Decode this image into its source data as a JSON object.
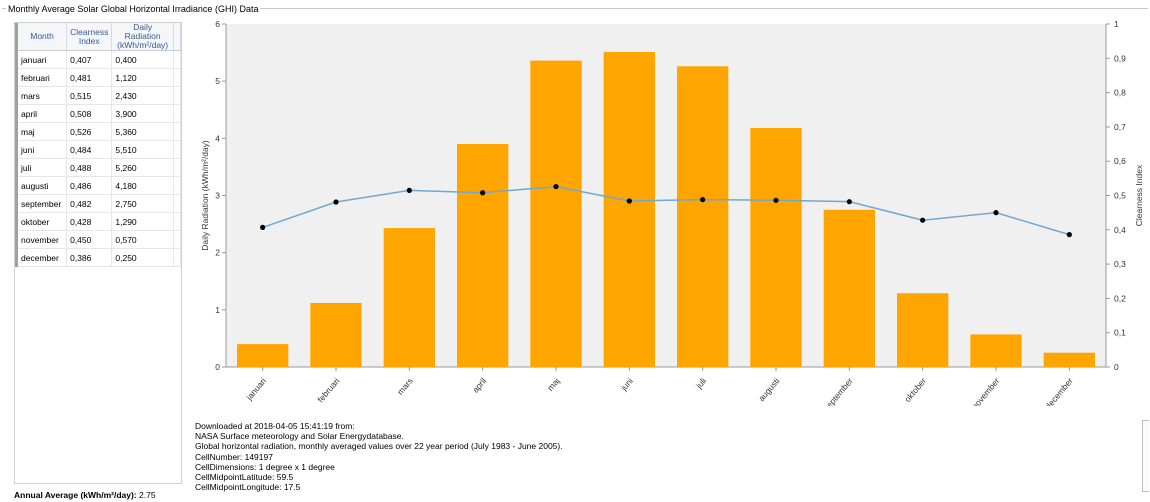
{
  "window": {
    "group_title": "Monthly Average Solar Global Horizontal Irradiance (GHI) Data"
  },
  "table": {
    "headers": [
      "Month",
      "Clearness Index",
      "Daily Radiation (kWh/m²/day)"
    ],
    "header_lines": [
      [
        "Month"
      ],
      [
        "Clearness",
        "Index"
      ],
      [
        "Daily Radiation",
        "(kWh/m²/day)"
      ]
    ],
    "rows": [
      [
        "januari",
        "0,407",
        "0,400"
      ],
      [
        "februari",
        "0,481",
        "1,120"
      ],
      [
        "mars",
        "0,515",
        "2,430"
      ],
      [
        "april",
        "0,508",
        "3,900"
      ],
      [
        "maj",
        "0,526",
        "5,360"
      ],
      [
        "juni",
        "0,484",
        "5,510"
      ],
      [
        "juli",
        "0,488",
        "5,260"
      ],
      [
        "augusti",
        "0,486",
        "4,180"
      ],
      [
        "september",
        "0,482",
        "2,750"
      ],
      [
        "oktober",
        "0,428",
        "1,290"
      ],
      [
        "november",
        "0,450",
        "0,570"
      ],
      [
        "december",
        "0,386",
        "0,250"
      ]
    ]
  },
  "annual": {
    "label": "Annual Average (kWh/m²/day):",
    "value": "2.75"
  },
  "info": {
    "lines": [
      "Downloaded at 2018-04-05 15:41:19 from:",
      "NASA Surface meteorology and Solar Energydatabase.",
      "Global horizontal radiation, monthly averaged values over 22 year period (July 1983 - June 2005).",
      "CellNumber: 149197",
      "CellDimensions: 1 degree x 1 degree",
      "CellMidpointLatitude: 59.5",
      "CellMidpointLongitude: 17.5"
    ]
  },
  "chart_data": {
    "type": "bar",
    "categories": [
      "januari",
      "februari",
      "mars",
      "april",
      "maj",
      "juni",
      "juli",
      "augusti",
      "september",
      "oktober",
      "november",
      "december"
    ],
    "series": [
      {
        "name": "Daily Radiation (kWh/m²/day)",
        "type": "bar",
        "axis": "left",
        "color": "#FFA500",
        "values": [
          0.4,
          1.12,
          2.43,
          3.9,
          5.36,
          5.51,
          5.26,
          4.18,
          2.75,
          1.29,
          0.57,
          0.25
        ]
      },
      {
        "name": "Clearness Index",
        "type": "line",
        "axis": "right",
        "color": "#6FA8D6",
        "values": [
          0.407,
          0.481,
          0.515,
          0.508,
          0.526,
          0.484,
          0.488,
          0.486,
          0.482,
          0.428,
          0.45,
          0.386
        ]
      }
    ],
    "ylabel": "Daily Radiation (kWh/m²/day)",
    "ylabel_right": "Clearness Index",
    "ylim": [
      0,
      6
    ],
    "ylim_right": [
      0,
      1
    ],
    "yticks": [
      "0",
      "1",
      "2",
      "3",
      "4",
      "5",
      "6"
    ],
    "yticks_right": [
      "0",
      "0,1",
      "0,2",
      "0,3",
      "0,4",
      "0,5",
      "0,6",
      "0,7",
      "0,8",
      "0,9",
      "1"
    ],
    "grid": false,
    "legend": "none"
  }
}
